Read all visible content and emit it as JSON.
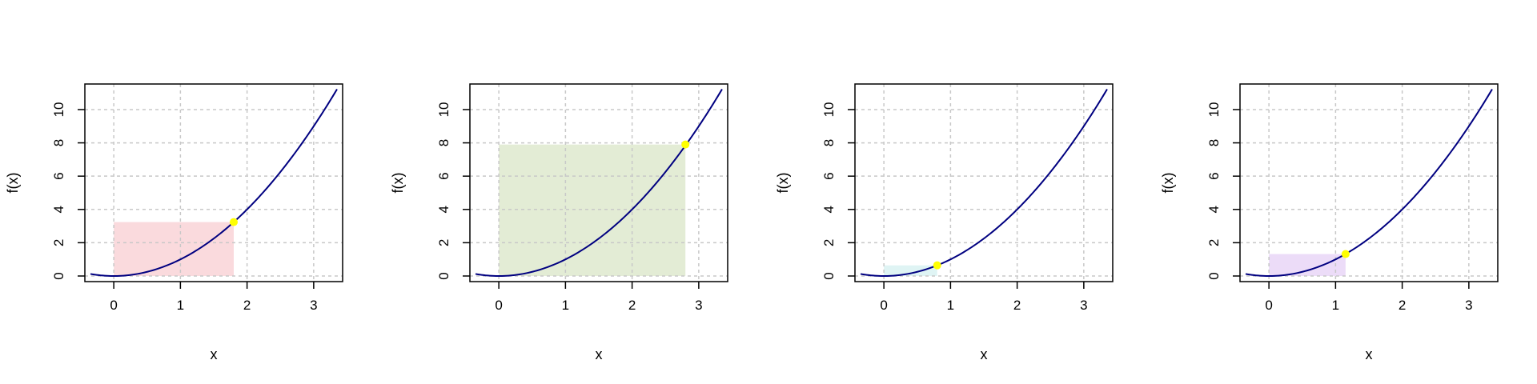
{
  "chart_data": [
    {
      "type": "line",
      "xlabel": "x",
      "ylabel": "f(x)",
      "xlim": [
        -0.35,
        3.35
      ],
      "ylim": [
        0,
        11.2
      ],
      "x_ticks": [
        0,
        1,
        2,
        3
      ],
      "y_ticks": [
        0,
        2,
        4,
        6,
        8,
        10
      ],
      "grid": true,
      "curve": {
        "formula": "x^2",
        "x_range": [
          -0.35,
          3.35
        ],
        "color": "#000080"
      },
      "rectangle": {
        "x0": 0,
        "x1": 1.8,
        "y0": 0,
        "y1": 3.24,
        "color": "#fadadd"
      },
      "point": {
        "x": 1.8,
        "y": 3.24,
        "color": "#ffff00"
      }
    },
    {
      "type": "line",
      "xlabel": "x",
      "ylabel": "f(x)",
      "xlim": [
        -0.35,
        3.35
      ],
      "ylim": [
        0,
        11.2
      ],
      "x_ticks": [
        0,
        1,
        2,
        3
      ],
      "y_ticks": [
        0,
        2,
        4,
        6,
        8,
        10
      ],
      "grid": true,
      "curve": {
        "formula": "x^2",
        "x_range": [
          -0.35,
          3.35
        ],
        "color": "#000080"
      },
      "rectangle": {
        "x0": 0,
        "x1": 2.8,
        "y0": 0,
        "y1": 7.9,
        "color": "#e3ecd5"
      },
      "point": {
        "x": 2.8,
        "y": 7.9,
        "color": "#ffff00"
      }
    },
    {
      "type": "line",
      "xlabel": "x",
      "ylabel": "f(x)",
      "xlim": [
        -0.35,
        3.35
      ],
      "ylim": [
        0,
        11.2
      ],
      "x_ticks": [
        0,
        1,
        2,
        3
      ],
      "y_ticks": [
        0,
        2,
        4,
        6,
        8,
        10
      ],
      "grid": true,
      "curve": {
        "formula": "x^2",
        "x_range": [
          -0.35,
          3.35
        ],
        "color": "#000080"
      },
      "rectangle": {
        "x0": 0,
        "x1": 0.8,
        "y0": 0,
        "y1": 0.64,
        "color": "#dff4f4"
      },
      "point": {
        "x": 0.8,
        "y": 0.64,
        "color": "#ffff00"
      }
    },
    {
      "type": "line",
      "xlabel": "x",
      "ylabel": "f(x)",
      "xlim": [
        -0.35,
        3.35
      ],
      "ylim": [
        0,
        11.2
      ],
      "x_ticks": [
        0,
        1,
        2,
        3
      ],
      "y_ticks": [
        0,
        2,
        4,
        6,
        8,
        10
      ],
      "grid": true,
      "curve": {
        "formula": "x^2",
        "x_range": [
          -0.35,
          3.35
        ],
        "color": "#000080"
      },
      "rectangle": {
        "x0": 0,
        "x1": 1.15,
        "y0": 0,
        "y1": 1.32,
        "color": "#ecdcf8"
      },
      "point": {
        "x": 1.15,
        "y": 1.32,
        "color": "#ffff00"
      }
    }
  ]
}
